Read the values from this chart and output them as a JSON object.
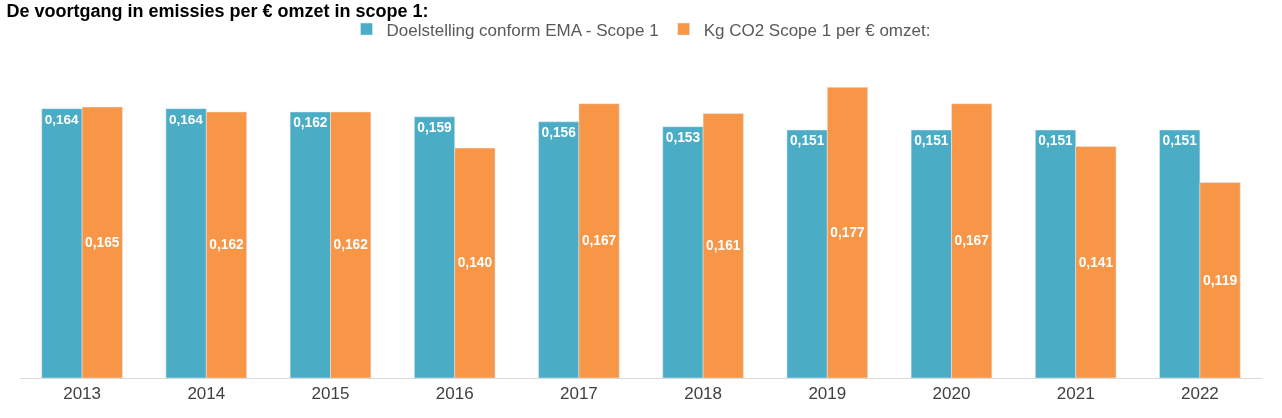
{
  "chart_data": {
    "type": "bar",
    "title": "De voortgang in emissies per € omzet in scope 1:",
    "categories": [
      "2013",
      "2014",
      "2015",
      "2016",
      "2017",
      "2018",
      "2019",
      "2020",
      "2021",
      "2022"
    ],
    "series": [
      {
        "name": "Doelstelling conform EMA - Scope 1",
        "color": "#4bacc6",
        "values": [
          0.164,
          0.164,
          0.162,
          0.159,
          0.156,
          0.153,
          0.151,
          0.151,
          0.151,
          0.151
        ],
        "value_labels": [
          "0,164",
          "0,164",
          "0,162",
          "0,159",
          "0,156",
          "0,153",
          "0,151",
          "0,151",
          "0,151",
          "0,151"
        ]
      },
      {
        "name": "Kg CO2 Scope 1 per € omzet:",
        "color": "#f79646",
        "values": [
          0.165,
          0.162,
          0.162,
          0.14,
          0.167,
          0.161,
          0.177,
          0.167,
          0.141,
          0.119
        ],
        "value_labels": [
          "0,165",
          "0,162",
          "0,162",
          "0,140",
          "0,167",
          "0,161",
          "0,177",
          "0,167",
          "0,141",
          "0,119"
        ]
      }
    ],
    "legend": "top"
  }
}
